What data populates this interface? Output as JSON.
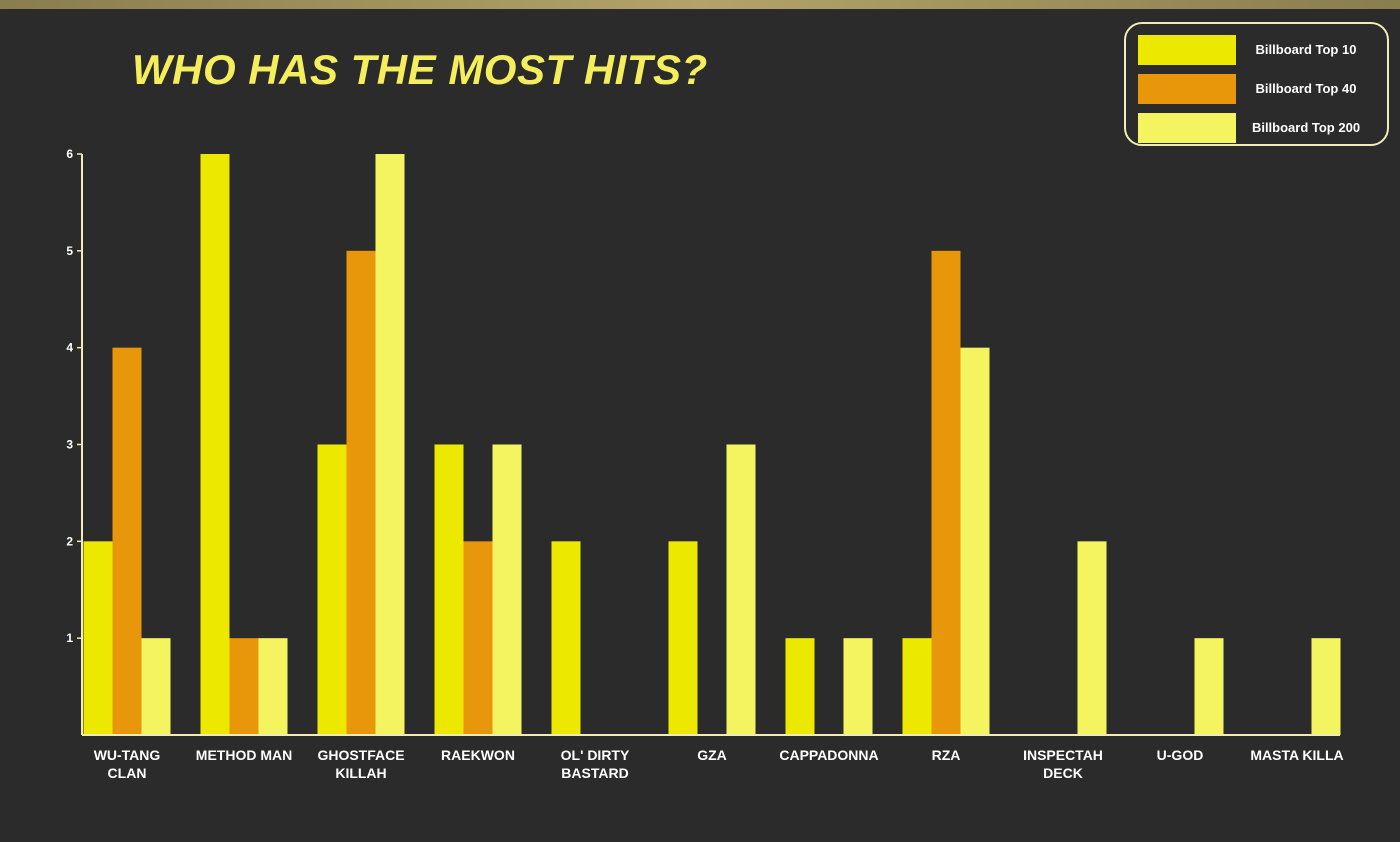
{
  "chart_data": {
    "type": "bar",
    "title": "WHO HAS THE MOST HITS?",
    "xlabel": "",
    "ylabel": "",
    "ylim": [
      0,
      6
    ],
    "yticks": [
      1,
      2,
      3,
      4,
      5,
      6
    ],
    "grid": false,
    "legend_position": "top-right",
    "categories": [
      [
        "WU-TANG",
        "CLAN"
      ],
      [
        "METHOD MAN"
      ],
      [
        "GHOSTFACE",
        "KILLAH"
      ],
      [
        "RAEKWON"
      ],
      [
        "OL' DIRTY",
        "BASTARD"
      ],
      [
        "GZA"
      ],
      [
        "CAPPADONNA"
      ],
      [
        "RZA"
      ],
      [
        "INSPECTAH",
        "DECK"
      ],
      [
        "U-GOD"
      ],
      [
        "MASTA KILLA"
      ]
    ],
    "series": [
      {
        "name": "Billboard Top 10",
        "color": "#ede800",
        "values": [
          2,
          6,
          3,
          3,
          2,
          2,
          1,
          1,
          0,
          0,
          0
        ]
      },
      {
        "name": "Billboard Top 40",
        "color": "#e8960a",
        "values": [
          4,
          1,
          5,
          2,
          0,
          0,
          0,
          5,
          0,
          0,
          0
        ]
      },
      {
        "name": "Billboard Top 200",
        "color": "#f4f460",
        "values": [
          1,
          1,
          6,
          3,
          0,
          3,
          1,
          4,
          2,
          1,
          1
        ]
      }
    ],
    "axis_color": "#f1ecb7"
  }
}
